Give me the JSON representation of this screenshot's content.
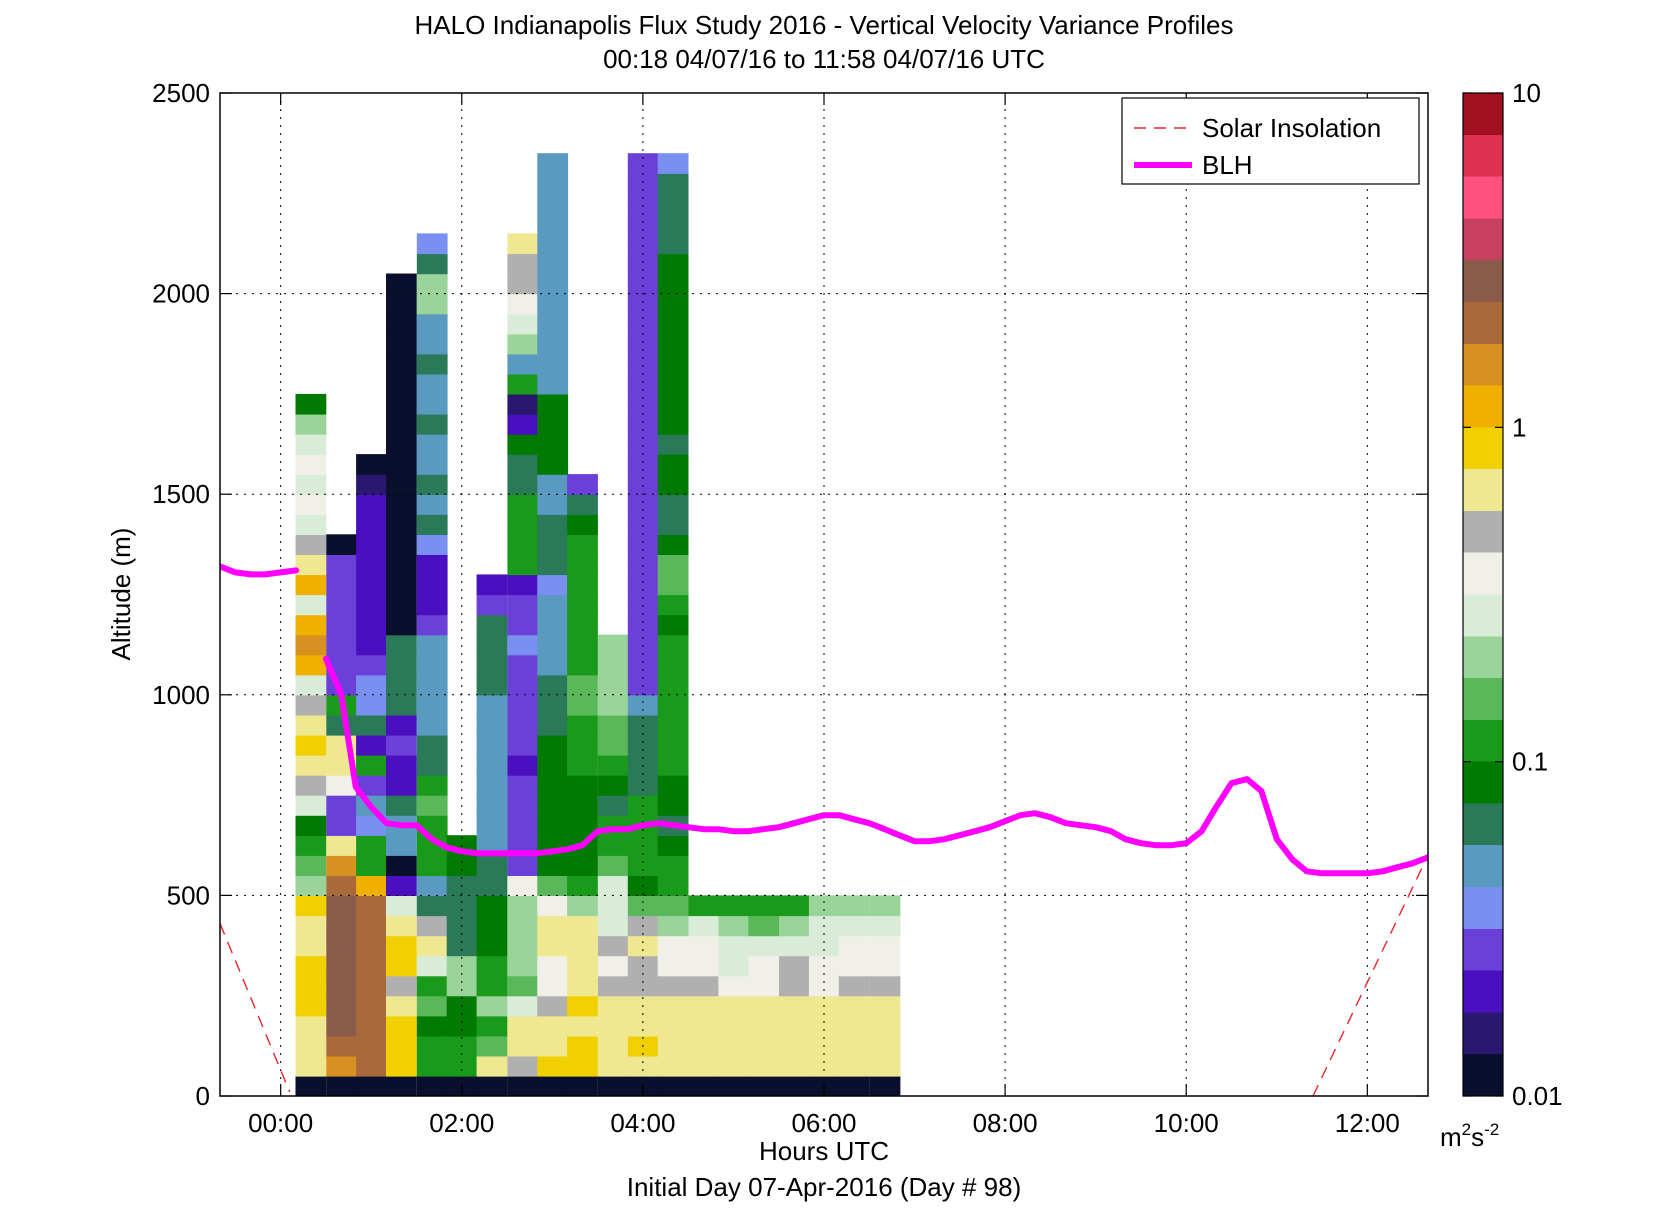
{
  "chart_data": {
    "type": "heatmap",
    "title": "HALO Indianapolis Flux Study 2016 - Vertical Velocity Variance Profiles",
    "subtitle": "00:18 04/07/16 to 11:58 04/07/16  UTC",
    "xlabel": "Hours UTC",
    "xlabel2": "Initial Day 07-Apr-2016 (Day # 98)",
    "ylabel": "Altitude (m)",
    "x_ticks": [
      {
        "hours": 0,
        "label": "00:00"
      },
      {
        "hours": 2,
        "label": "02:00"
      },
      {
        "hours": 4,
        "label": "04:00"
      },
      {
        "hours": 6,
        "label": "06:00"
      },
      {
        "hours": 8,
        "label": "08:00"
      },
      {
        "hours": 10,
        "label": "10:00"
      },
      {
        "hours": 12,
        "label": "12:00"
      }
    ],
    "xlim_hours": [
      -0.67,
      12.67
    ],
    "ylim": [
      0,
      2500
    ],
    "y_ticks": [
      0,
      500,
      1000,
      1500,
      2000,
      2500
    ],
    "y_tick_labels": [
      "0",
      "500",
      "1000",
      "1500",
      "2000",
      "2500"
    ],
    "grid": true,
    "legend_position": "top-right",
    "legend": [
      {
        "label": "Solar Insolation",
        "style": "dashed",
        "color": "#e8262b"
      },
      {
        "label": "BLH",
        "style": "solid",
        "color": "#ff00ff"
      }
    ],
    "colorbar": {
      "scale": "log",
      "range": [
        0.01,
        10
      ],
      "tick_values": [
        0.01,
        0.1,
        1,
        10
      ],
      "tick_labels": [
        "0.01",
        "0.1",
        "1",
        "10"
      ],
      "unit_base": "m",
      "unit_sup1": "2",
      "unit_mid": "s",
      "unit_sup2": "-2",
      "colors": [
        "#0a0f2e",
        "#2a1870",
        "#4a10c0",
        "#6a40d8",
        "#7a90f0",
        "#5a9ac0",
        "#2a7a5a",
        "#007a00",
        "#1a9a1a",
        "#5ab85a",
        "#9ad49a",
        "#d8ecd8",
        "#f0f0e8",
        "#b0b0b0",
        "#f0e890",
        "#f0d000",
        "#f0b000",
        "#d89020",
        "#a86a3a",
        "#8a5a4a",
        "#c84060",
        "#ff5080",
        "#e03050",
        "#a01020"
      ]
    },
    "profile_time_step_hours": 0.333,
    "profile_bin_m": 50,
    "profiles": [
      {
        "t": 0.33,
        "v": [
          0.01,
          0.6,
          0.6,
          0.7,
          0.8,
          0.8,
          0.8,
          0.7,
          0.7,
          0.9,
          0.2,
          0.15,
          0.12,
          0.08,
          0.3,
          0.5,
          0.6,
          0.8,
          0.6,
          0.5,
          0.3,
          1.2,
          1.5,
          1.3,
          0.3,
          1.2,
          0.6,
          0.45,
          0.3,
          0.35,
          0.3,
          0.4,
          0.3,
          0.2,
          0.08
        ]
      },
      {
        "t": 0.67,
        "v": [
          0.01,
          1.5,
          2.0,
          2.5,
          2.5,
          2.8,
          2.5,
          3.0,
          2.8,
          2.5,
          2.0,
          1.5,
          0.6,
          0.03,
          0.03,
          0.4,
          0.6,
          0.6,
          0.06,
          0.12,
          0.03,
          0.03,
          0.03,
          0.03,
          0.03,
          0.03,
          0.03,
          0.01
        ]
      },
      {
        "t": 1.0,
        "v": [
          0.01,
          2.0,
          1.8,
          1.8,
          1.8,
          1.8,
          1.8,
          2.0,
          2.0,
          1.8,
          1.2,
          0.1,
          0.1,
          0.04,
          0.05,
          0.03,
          0.1,
          0.02,
          0.06,
          0.04,
          0.04,
          0.03,
          0.02,
          0.02,
          0.02,
          0.02,
          0.02,
          0.02,
          0.02,
          0.02,
          0.015,
          0.01
        ]
      },
      {
        "t": 1.33,
        "v": [
          0.01,
          0.8,
          0.8,
          0.8,
          0.6,
          0.5,
          0.8,
          0.8,
          0.7,
          0.25,
          0.02,
          0.01,
          0.05,
          0.05,
          0.07,
          0.02,
          0.02,
          0.03,
          0.02,
          0.06,
          0.06,
          0.06,
          0.07,
          0.01,
          0.01,
          0.01,
          0.01,
          0.01,
          0.01,
          0.01,
          0.01,
          0.01,
          0.01,
          0.01,
          0.01,
          0.01,
          0.01,
          0.01,
          0.01,
          0.01,
          0.01
        ]
      },
      {
        "t": 1.67,
        "v": [
          0.01,
          0.12,
          0.12,
          0.09,
          0.15,
          0.12,
          0.25,
          0.6,
          0.5,
          0.07,
          0.05,
          0.12,
          0.1,
          0.1,
          0.15,
          0.1,
          0.07,
          0.07,
          0.05,
          0.05,
          0.05,
          0.05,
          0.05,
          0.03,
          0.02,
          0.02,
          0.02,
          0.04,
          0.07,
          0.05,
          0.06,
          0.05,
          0.05,
          0.06,
          0.05,
          0.05,
          0.06,
          0.05,
          0.05,
          0.2,
          0.2,
          0.07,
          0.035
        ]
      },
      {
        "t": 2.0,
        "v": [
          0.01,
          0.1,
          0.1,
          0.09,
          0.09,
          0.2,
          0.2,
          0.07,
          0.07,
          0.07,
          0.07,
          0.08,
          0.08
        ]
      },
      {
        "t": 2.33,
        "v": [
          0.01,
          0.6,
          0.15,
          0.1,
          0.2,
          0.1,
          0.1,
          0.08,
          0.08,
          0.08,
          0.07,
          0.07,
          0.05,
          0.05,
          0.05,
          0.05,
          0.05,
          0.05,
          0.05,
          0.05,
          0.07,
          0.07,
          0.07,
          0.07,
          0.03,
          0.02
        ]
      },
      {
        "t": 2.67,
        "v": [
          0.01,
          0.5,
          0.6,
          0.6,
          0.3,
          0.15,
          0.2,
          0.2,
          0.2,
          0.2,
          0.35,
          0.03,
          0.025,
          0.025,
          0.025,
          0.025,
          0.02,
          0.025,
          0.025,
          0.025,
          0.03,
          0.03,
          0.04,
          0.03,
          0.025,
          0.02,
          0.1,
          0.1,
          0.1,
          0.1,
          0.07,
          0.07,
          0.08,
          0.02,
          0.015,
          0.1,
          0.05,
          0.2,
          0.3,
          0.4,
          0.5,
          0.5,
          0.6
        ]
      },
      {
        "t": 3.0,
        "v": [
          0.01,
          0.8,
          0.6,
          0.6,
          0.45,
          0.4,
          0.35,
          0.6,
          0.6,
          0.35,
          0.15,
          0.08,
          0.08,
          0.08,
          0.08,
          0.08,
          0.08,
          0.08,
          0.07,
          0.07,
          0.06,
          0.05,
          0.05,
          0.05,
          0.05,
          0.04,
          0.07,
          0.07,
          0.07,
          0.05,
          0.05,
          0.08,
          0.08,
          0.08,
          0.08,
          0.05,
          0.05,
          0.05,
          0.05,
          0.05,
          0.05,
          0.05,
          0.05,
          0.05,
          0.05,
          0.05,
          0.05
        ]
      },
      {
        "t": 3.33,
        "v": [
          0.01,
          0.9,
          0.9,
          0.7,
          0.8,
          0.7,
          0.6,
          0.7,
          0.6,
          0.2,
          0.1,
          0.09,
          0.08,
          0.09,
          0.09,
          0.08,
          0.1,
          0.12,
          0.12,
          0.15,
          0.15,
          0.1,
          0.1,
          0.12,
          0.1,
          0.1,
          0.1,
          0.1,
          0.08,
          0.07,
          0.03
        ]
      },
      {
        "t": 3.67,
        "v": [
          0.01,
          0.6,
          0.6,
          0.6,
          0.6,
          0.5,
          0.4,
          0.5,
          0.3,
          0.3,
          0.25,
          0.15,
          0.12,
          0.1,
          0.07,
          0.08,
          0.1,
          0.15,
          0.15,
          0.2,
          0.2,
          0.2,
          0.2
        ]
      },
      {
        "t": 4.0,
        "v": [
          0.01,
          0.7,
          0.8,
          0.6,
          0.7,
          0.5,
          0.5,
          0.6,
          0.45,
          0.15,
          0.08,
          0.12,
          0.12,
          0.1,
          0.1,
          0.07,
          0.06,
          0.06,
          0.06,
          0.05,
          0.03,
          0.03,
          0.03,
          0.03,
          0.03,
          0.03,
          0.03,
          0.03,
          0.03,
          0.03,
          0.03,
          0.03,
          0.03,
          0.03,
          0.03,
          0.03,
          0.03,
          0.03,
          0.03,
          0.03,
          0.03,
          0.03,
          0.03,
          0.03,
          0.03,
          0.03,
          0.03
        ]
      },
      {
        "t": 4.33,
        "v": [
          0.01,
          0.6,
          0.7,
          0.7,
          0.6,
          0.5,
          0.35,
          0.35,
          0.2,
          0.15,
          0.12,
          0.1,
          0.08,
          0.07,
          0.09,
          0.09,
          0.1,
          0.1,
          0.12,
          0.12,
          0.1,
          0.1,
          0.1,
          0.08,
          0.1,
          0.15,
          0.15,
          0.08,
          0.06,
          0.07,
          0.08,
          0.08,
          0.06,
          0.09,
          0.09,
          0.09,
          0.09,
          0.09,
          0.09,
          0.09,
          0.09,
          0.09,
          0.07,
          0.06,
          0.06,
          0.06,
          0.04
        ]
      },
      {
        "t": 4.67,
        "v": [
          0.01,
          0.6,
          0.7,
          0.7,
          0.7,
          0.45,
          0.4,
          0.35,
          0.25,
          0.1
        ]
      },
      {
        "t": 5.0,
        "v": [
          0.01,
          0.6,
          0.6,
          0.6,
          0.6,
          0.4,
          0.3,
          0.3,
          0.2,
          0.1
        ]
      },
      {
        "t": 5.33,
        "v": [
          0.01,
          0.7,
          0.6,
          0.6,
          0.7,
          0.4,
          0.35,
          0.3,
          0.15,
          0.1
        ]
      },
      {
        "t": 5.67,
        "v": [
          0.01,
          0.6,
          0.6,
          0.6,
          0.6,
          0.5,
          0.5,
          0.3,
          0.2,
          0.1
        ]
      },
      {
        "t": 6.0,
        "v": [
          0.01,
          0.6,
          0.7,
          0.6,
          0.6,
          0.4,
          0.4,
          0.3,
          0.3,
          0.2
        ]
      },
      {
        "t": 6.33,
        "v": [
          0.01,
          0.6,
          0.7,
          0.6,
          0.6,
          0.5,
          0.4,
          0.4,
          0.3,
          0.2
        ]
      },
      {
        "t": 6.67,
        "v": [
          0.01,
          0.6,
          0.7,
          0.6,
          0.6,
          0.5,
          0.4,
          0.4,
          0.3,
          0.2
        ]
      }
    ],
    "blh": {
      "name": "BLH",
      "x_hours": [
        -0.67,
        -0.5,
        -0.33,
        -0.17,
        0.0,
        0.17,
        0.33,
        0.5,
        0.67,
        0.83,
        1.0,
        1.17,
        1.33,
        1.5,
        1.67,
        1.83,
        2.0,
        2.17,
        2.33,
        2.5,
        2.67,
        2.83,
        3.0,
        3.17,
        3.33,
        3.5,
        3.67,
        3.83,
        4.0,
        4.17,
        4.33,
        4.5,
        4.67,
        4.83,
        5.0,
        5.17,
        5.33,
        5.5,
        5.67,
        5.83,
        6.0,
        6.17,
        6.33,
        6.5,
        6.67,
        6.83,
        7.0,
        7.17,
        7.33,
        7.5,
        7.67,
        7.83,
        8.0,
        8.17,
        8.33,
        8.5,
        8.67,
        8.83,
        9.0,
        9.17,
        9.33,
        9.5,
        9.67,
        9.83,
        10.0,
        10.17,
        10.33,
        10.5,
        10.67,
        10.83,
        11.0,
        11.17,
        11.33,
        11.5,
        11.67,
        11.83,
        12.0,
        12.17,
        12.33,
        12.5,
        12.67
      ],
      "y": [
        1320,
        1305,
        1300,
        1300,
        1305,
        1310,
        null,
        1090,
        1000,
        770,
        720,
        680,
        675,
        675,
        640,
        620,
        610,
        605,
        605,
        605,
        605,
        605,
        610,
        615,
        625,
        660,
        665,
        665,
        675,
        680,
        675,
        670,
        665,
        665,
        660,
        660,
        665,
        670,
        680,
        690,
        700,
        700,
        690,
        680,
        665,
        650,
        635,
        635,
        640,
        650,
        660,
        670,
        685,
        700,
        705,
        695,
        680,
        675,
        670,
        660,
        640,
        630,
        625,
        625,
        630,
        660,
        720,
        780,
        790,
        760,
        640,
        590,
        560,
        555,
        555,
        555,
        555,
        560,
        570,
        580,
        595
      ]
    },
    "solar_insolation": {
      "name": "Solar Insolation",
      "segments": [
        {
          "x_hours": [
            -0.67,
            0.1
          ],
          "y": [
            430,
            10
          ]
        },
        {
          "x_hours": [
            11.4,
            12.67
          ],
          "y": [
            0,
            600
          ]
        }
      ]
    }
  }
}
